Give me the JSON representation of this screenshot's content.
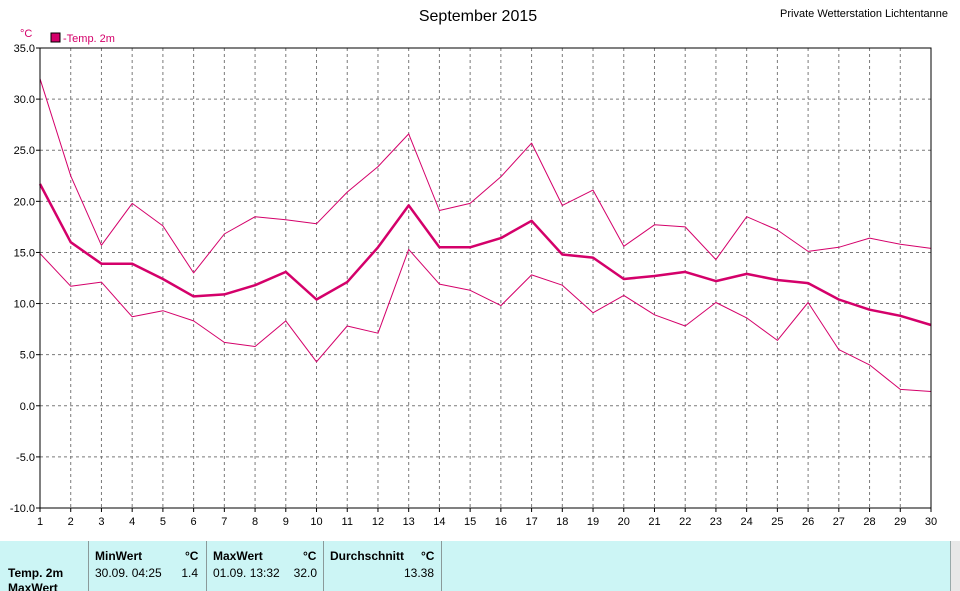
{
  "header": {
    "title": "September 2015",
    "station": "Private Wetterstation Lichtentanne",
    "unit": "°C",
    "legend": "-Temp. 2m"
  },
  "colors": {
    "series": "#d4006a",
    "grid": "#7a7a7a",
    "panel": "#ccf5f5"
  },
  "chart_data": {
    "type": "line",
    "title": "September 2015",
    "ylabel": "°C",
    "xlabel": "",
    "ylim": [
      -10,
      35
    ],
    "yticks": [
      "35.0",
      "30.0",
      "25.0",
      "20.0",
      "15.0",
      "10.0",
      "5.0",
      "0.0",
      "-5.0",
      "-10.0"
    ],
    "x": [
      1,
      2,
      3,
      4,
      5,
      6,
      7,
      8,
      9,
      10,
      11,
      12,
      13,
      14,
      15,
      16,
      17,
      18,
      19,
      20,
      21,
      22,
      23,
      24,
      25,
      26,
      27,
      28,
      29,
      30
    ],
    "grid": true,
    "legend_position": "top-left",
    "series": [
      {
        "name": "Temp. 2m",
        "role": "max",
        "values": [
          32.0,
          22.5,
          15.7,
          19.8,
          17.6,
          13.0,
          16.8,
          18.5,
          18.2,
          17.8,
          20.9,
          23.4,
          26.6,
          19.1,
          19.8,
          22.4,
          25.7,
          19.6,
          21.1,
          15.6,
          17.7,
          17.5,
          14.3,
          18.5,
          17.2,
          15.1,
          15.5,
          16.4,
          15.8,
          15.4
        ]
      },
      {
        "name": "Temp. 2m",
        "role": "mean",
        "values": [
          21.7,
          16.0,
          13.9,
          13.9,
          12.4,
          10.7,
          10.9,
          11.8,
          13.1,
          10.4,
          12.1,
          15.5,
          19.6,
          15.5,
          15.5,
          16.4,
          18.1,
          14.8,
          14.5,
          12.4,
          12.7,
          13.1,
          12.2,
          12.9,
          12.3,
          12.0,
          10.4,
          9.4,
          8.8,
          7.9
        ]
      },
      {
        "name": "Temp. 2m",
        "role": "min",
        "values": [
          14.9,
          11.7,
          12.1,
          8.7,
          9.3,
          8.3,
          6.2,
          5.8,
          8.3,
          4.3,
          7.8,
          7.1,
          15.3,
          11.9,
          11.3,
          9.8,
          12.8,
          11.8,
          9.1,
          10.8,
          8.9,
          7.8,
          10.1,
          8.6,
          6.4,
          10.1,
          5.5,
          4.0,
          1.6,
          1.4
        ]
      }
    ]
  },
  "stats": {
    "row_label": "Temp. 2m",
    "row_label_2": "MaxWert",
    "min": {
      "header": "MinWert",
      "unit": "°C",
      "datetime": "30.09.  04:25",
      "value": "1.4"
    },
    "max": {
      "header": "MaxWert",
      "unit": "°C",
      "datetime": "01.09.  13:32",
      "value": "32.0"
    },
    "avg": {
      "header": "Durchschnitt",
      "unit": "°C",
      "value": "13.38"
    }
  }
}
